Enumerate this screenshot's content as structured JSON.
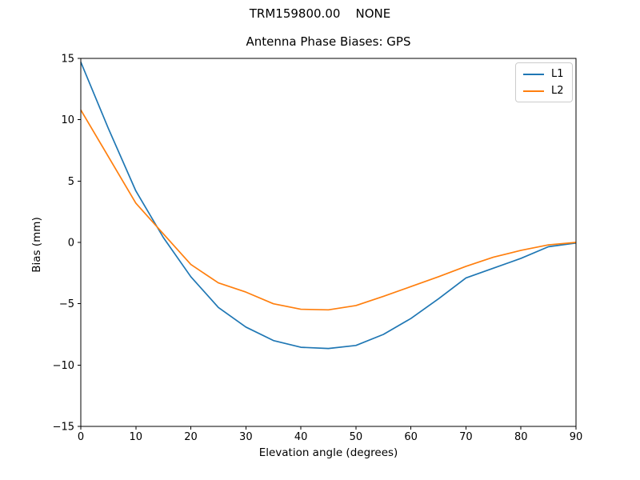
{
  "figure": {
    "suptitle": "TRM159800.00    NONE",
    "title": "Antenna Phase Biases: GPS",
    "xlabel": "Elevation angle (degrees)",
    "ylabel": "Bias (mm)"
  },
  "legend": {
    "position": "upper right",
    "items": [
      {
        "label": "L1",
        "color": "#1f77b4"
      },
      {
        "label": "L2",
        "color": "#ff7f0e"
      }
    ]
  },
  "chart_data": {
    "type": "line",
    "title": "Antenna Phase Biases: GPS",
    "xlabel": "Elevation angle (degrees)",
    "ylabel": "Bias (mm)",
    "x": [
      0,
      5,
      10,
      15,
      20,
      25,
      30,
      35,
      40,
      45,
      50,
      55,
      60,
      65,
      70,
      75,
      80,
      85,
      90
    ],
    "series": [
      {
        "name": "L1",
        "color": "#1f77b4",
        "values": [
          14.7,
          9.3,
          4.2,
          0.4,
          -2.8,
          -5.3,
          -6.9,
          -8.0,
          -8.55,
          -8.65,
          -8.4,
          -7.5,
          -6.2,
          -4.6,
          -2.9,
          -2.1,
          -1.3,
          -0.35,
          -0.05
        ]
      },
      {
        "name": "L2",
        "color": "#ff7f0e",
        "values": [
          10.8,
          7.0,
          3.2,
          0.7,
          -1.8,
          -3.3,
          -4.05,
          -5.0,
          -5.45,
          -5.5,
          -5.15,
          -4.4,
          -3.6,
          -2.8,
          -1.95,
          -1.2,
          -0.65,
          -0.2,
          0.0
        ]
      }
    ],
    "xlim": [
      0,
      90
    ],
    "ylim": [
      -15,
      15
    ],
    "xticks": [
      0,
      10,
      20,
      30,
      40,
      50,
      60,
      70,
      80,
      90
    ],
    "xtick_labels": [
      "0",
      "10",
      "20",
      "30",
      "40",
      "50",
      "60",
      "70",
      "80",
      "90"
    ],
    "yticks": [
      -15,
      -10,
      -5,
      0,
      5,
      10,
      15
    ],
    "ytick_labels": [
      "−15",
      "−10",
      "−5",
      "0",
      "5",
      "10",
      "15"
    ],
    "grid": false,
    "legend_position": "upper right"
  },
  "colors": {
    "background": "#ffffff",
    "axis": "#000000",
    "tick": "#000000",
    "legend_border": "#cccccc"
  }
}
